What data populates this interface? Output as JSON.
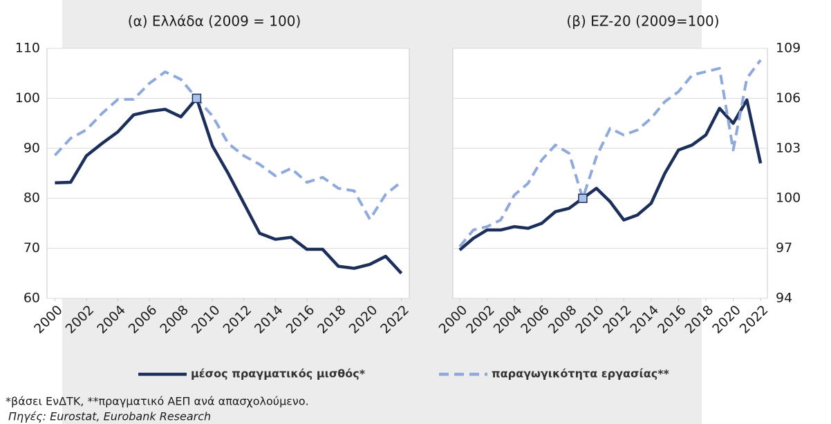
{
  "chart_data": [
    {
      "type": "line",
      "title": "(α) Ελλάδα (2009 = 100)",
      "x": [
        2000,
        2001,
        2002,
        2003,
        2004,
        2005,
        2006,
        2007,
        2008,
        2009,
        2010,
        2011,
        2012,
        2013,
        2014,
        2015,
        2016,
        2017,
        2018,
        2019,
        2020,
        2021,
        2022
      ],
      "xlim": [
        1999.5,
        2022.5
      ],
      "xticks": [
        2000,
        2002,
        2004,
        2006,
        2008,
        2010,
        2012,
        2014,
        2016,
        2018,
        2020,
        2022
      ],
      "ylim": [
        60,
        110
      ],
      "yticks": [
        60,
        70,
        80,
        90,
        100,
        110
      ],
      "grid": true,
      "highlight_x": 2009,
      "series": [
        {
          "name": "μέσος πραγματικός μισθός*",
          "color": "#1c2f5a",
          "dash": false,
          "values": [
            83.1,
            83.2,
            88.5,
            91,
            93.3,
            96.7,
            97.4,
            97.8,
            96.3,
            100,
            90.5,
            85,
            79,
            73,
            71.8,
            72.2,
            69.8,
            69.8,
            66.4,
            66,
            66.8,
            68.4,
            65
          ]
        },
        {
          "name": "παραγωγικότητα εργασίας**",
          "color": "#8fa9dc",
          "dash": true,
          "values": [
            88.6,
            92,
            93.7,
            97,
            99.8,
            99.8,
            103,
            105.3,
            103.8,
            100,
            96.5,
            91,
            88.5,
            86.8,
            84.5,
            86,
            83.2,
            84.2,
            82,
            81.5,
            75.8,
            80.8,
            83.3
          ]
        }
      ]
    },
    {
      "type": "line",
      "title": "(β) EZ-20 (2009=100)",
      "x": [
        2000,
        2001,
        2002,
        2003,
        2004,
        2005,
        2006,
        2007,
        2008,
        2009,
        2010,
        2011,
        2012,
        2013,
        2014,
        2015,
        2016,
        2017,
        2018,
        2019,
        2020,
        2021,
        2022
      ],
      "xlim": [
        1999.5,
        2022.5
      ],
      "xticks": [
        2000,
        2002,
        2004,
        2006,
        2008,
        2010,
        2012,
        2014,
        2016,
        2018,
        2020,
        2022
      ],
      "ylim": [
        94,
        109
      ],
      "yticks": [
        94,
        97,
        100,
        103,
        106,
        109
      ],
      "grid": true,
      "highlight_x": 2009,
      "series": [
        {
          "color": "#1c2f5a",
          "dash": false,
          "values": [
            96.9,
            97.6,
            98.1,
            98.1,
            98.3,
            98.2,
            98.5,
            99.2,
            99.4,
            100,
            100.6,
            99.8,
            98.7,
            99,
            99.7,
            101.5,
            102.9,
            103.2,
            103.8,
            105.4,
            104.5,
            105.9,
            102.1
          ]
        },
        {
          "color": "#8fa9dc",
          "dash": true,
          "values": [
            97.1,
            98.1,
            98.3,
            98.7,
            100.2,
            100.9,
            102.3,
            103.2,
            102.7,
            100,
            102.5,
            104.2,
            103.8,
            104.1,
            104.8,
            105.8,
            106.4,
            107.4,
            107.6,
            107.8,
            102.9,
            107.2,
            108.3
          ]
        }
      ]
    }
  ],
  "notes": [
    "*βάσει ΕνΔΤΚ,  **πραγματικό ΑΕΠ ανά απασχολούμενο.",
    "Πηγές: Eurostat, Eurobank Research"
  ]
}
